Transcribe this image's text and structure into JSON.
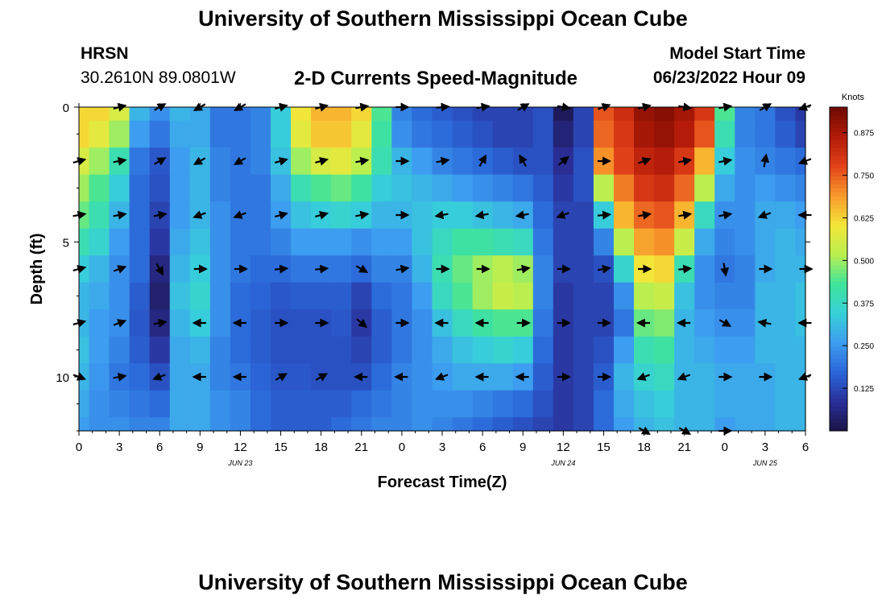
{
  "page": {
    "title": "University of Southern Mississippi Ocean Cube",
    "station": "HRSN",
    "coords": "30.2610N  89.0801W",
    "model_label": "Model Start Time",
    "model_time": "06/23/2022 Hour 09",
    "bottom_title": "University of Southern Mississippi Ocean Cube"
  },
  "chart_data": {
    "type": "heatmap",
    "title": "2-D Currents Speed-Magnitude",
    "xlabel": "Forecast Time(Z)",
    "ylabel": "Depth (ft)",
    "x_range": [
      0,
      54
    ],
    "x_ticks": [
      0,
      3,
      6,
      9,
      12,
      15,
      18,
      21,
      24,
      27,
      30,
      33,
      36,
      39,
      42,
      45,
      48,
      51,
      54
    ],
    "x_tick_labels": [
      "0",
      "3",
      "6",
      "9",
      "12",
      "15",
      "18",
      "21",
      "0",
      "3",
      "6",
      "9",
      "12",
      "15",
      "18",
      "21",
      "0",
      "3",
      "6"
    ],
    "date_labels": [
      {
        "label": "JUN 23",
        "x": 12
      },
      {
        "label": "JUN 24",
        "x": 36
      },
      {
        "label": "JUN 25",
        "x": 51
      }
    ],
    "depth_range": [
      0,
      12
    ],
    "depth_ticks": [
      0,
      5,
      10
    ],
    "depth_tick_labels": [
      "0",
      "5",
      "10"
    ],
    "colorbar": {
      "unit": "Knots",
      "range": [
        0,
        0.95
      ],
      "ticks": [
        0.125,
        0.25,
        0.375,
        0.5,
        0.625,
        0.75,
        0.875
      ],
      "tick_labels": [
        "0.125",
        "0.250",
        "0.375",
        "0.500",
        "0.625",
        "0.750",
        "0.875"
      ],
      "colors": [
        "#1a1446",
        "#2a2f9a",
        "#2a66d8",
        "#3d9cf0",
        "#37d0d8",
        "#3fe49a",
        "#b9ef50",
        "#f4e638",
        "#f89a2c",
        "#e3421a",
        "#b21a08",
        "#6e0a02"
      ]
    },
    "grid_times": [
      0,
      1.5,
      3,
      4.5,
      6,
      7.5,
      9,
      10.5,
      12,
      13.5,
      15,
      16.5,
      18,
      19.5,
      21,
      22.5,
      24,
      25.5,
      27,
      28.5,
      30,
      31.5,
      33,
      34.5,
      36,
      37.5,
      39,
      40.5,
      42,
      43.5,
      45,
      46.5,
      48,
      49.5,
      51,
      52.5,
      54
    ],
    "grid_depths": [
      0,
      1,
      2,
      3,
      4,
      5,
      6,
      7,
      8,
      9,
      10,
      11,
      12
    ],
    "speed_profiles": [
      {
        "t": 0,
        "speeds": [
          0.62,
          0.62,
          0.56,
          0.5,
          0.46,
          0.4,
          0.34,
          0.3,
          0.3,
          0.32,
          0.3,
          0.28,
          0.26
        ]
      },
      {
        "t": 1.5,
        "speeds": [
          0.62,
          0.58,
          0.5,
          0.44,
          0.4,
          0.36,
          0.3,
          0.28,
          0.26,
          0.26,
          0.25,
          0.24,
          0.24
        ]
      },
      {
        "t": 3,
        "speeds": [
          0.56,
          0.5,
          0.4,
          0.34,
          0.3,
          0.26,
          0.24,
          0.24,
          0.24,
          0.22,
          0.2,
          0.22,
          0.24
        ]
      },
      {
        "t": 4.5,
        "speeds": [
          0.3,
          0.26,
          0.2,
          0.18,
          0.18,
          0.18,
          0.18,
          0.16,
          0.15,
          0.16,
          0.18,
          0.2,
          0.22
        ]
      },
      {
        "t": 6,
        "speeds": [
          0.24,
          0.2,
          0.15,
          0.14,
          0.12,
          0.1,
          0.06,
          0.04,
          0.06,
          0.1,
          0.14,
          0.18,
          0.22
        ]
      },
      {
        "t": 7.5,
        "speeds": [
          0.3,
          0.28,
          0.26,
          0.26,
          0.26,
          0.28,
          0.3,
          0.32,
          0.3,
          0.28,
          0.28,
          0.28,
          0.28
        ]
      },
      {
        "t": 9,
        "speeds": [
          0.28,
          0.28,
          0.3,
          0.3,
          0.3,
          0.32,
          0.34,
          0.36,
          0.34,
          0.3,
          0.28,
          0.28,
          0.28
        ]
      },
      {
        "t": 10.5,
        "speeds": [
          0.2,
          0.2,
          0.22,
          0.22,
          0.24,
          0.24,
          0.24,
          0.24,
          0.24,
          0.22,
          0.22,
          0.24,
          0.24
        ]
      },
      {
        "t": 12,
        "speeds": [
          0.2,
          0.2,
          0.2,
          0.2,
          0.2,
          0.2,
          0.2,
          0.18,
          0.18,
          0.18,
          0.2,
          0.22,
          0.22
        ]
      },
      {
        "t": 13.5,
        "speeds": [
          0.22,
          0.22,
          0.22,
          0.2,
          0.2,
          0.2,
          0.18,
          0.17,
          0.16,
          0.16,
          0.17,
          0.18,
          0.18
        ]
      },
      {
        "t": 15,
        "speeds": [
          0.34,
          0.34,
          0.32,
          0.28,
          0.26,
          0.22,
          0.18,
          0.15,
          0.14,
          0.14,
          0.15,
          0.16,
          0.16
        ]
      },
      {
        "t": 16.5,
        "speeds": [
          0.6,
          0.58,
          0.5,
          0.4,
          0.32,
          0.26,
          0.2,
          0.16,
          0.14,
          0.14,
          0.15,
          0.16,
          0.16
        ]
      },
      {
        "t": 18,
        "speeds": [
          0.66,
          0.64,
          0.56,
          0.44,
          0.34,
          0.26,
          0.2,
          0.16,
          0.14,
          0.14,
          0.14,
          0.16,
          0.16
        ]
      },
      {
        "t": 19.5,
        "speeds": [
          0.66,
          0.64,
          0.58,
          0.46,
          0.36,
          0.26,
          0.2,
          0.16,
          0.15,
          0.14,
          0.14,
          0.16,
          0.18
        ]
      },
      {
        "t": 21,
        "speeds": [
          0.62,
          0.58,
          0.52,
          0.42,
          0.34,
          0.24,
          0.18,
          0.12,
          0.1,
          0.12,
          0.14,
          0.18,
          0.2
        ]
      },
      {
        "t": 22.5,
        "speeds": [
          0.44,
          0.42,
          0.4,
          0.34,
          0.3,
          0.26,
          0.22,
          0.18,
          0.16,
          0.16,
          0.18,
          0.2,
          0.22
        ]
      },
      {
        "t": 24,
        "speeds": [
          0.22,
          0.24,
          0.3,
          0.32,
          0.3,
          0.26,
          0.22,
          0.2,
          0.2,
          0.2,
          0.22,
          0.22,
          0.22
        ]
      },
      {
        "t": 25.5,
        "speeds": [
          0.18,
          0.2,
          0.26,
          0.3,
          0.32,
          0.32,
          0.3,
          0.26,
          0.24,
          0.24,
          0.24,
          0.24,
          0.24
        ]
      },
      {
        "t": 27,
        "speeds": [
          0.16,
          0.18,
          0.22,
          0.28,
          0.34,
          0.38,
          0.4,
          0.38,
          0.32,
          0.28,
          0.26,
          0.24,
          0.22
        ]
      },
      {
        "t": 28.5,
        "speeds": [
          0.14,
          0.16,
          0.2,
          0.26,
          0.34,
          0.42,
          0.46,
          0.44,
          0.38,
          0.32,
          0.28,
          0.24,
          0.2
        ]
      },
      {
        "t": 30,
        "speeds": [
          0.12,
          0.14,
          0.18,
          0.24,
          0.32,
          0.42,
          0.5,
          0.5,
          0.42,
          0.34,
          0.28,
          0.22,
          0.18
        ]
      },
      {
        "t": 31.5,
        "speeds": [
          0.12,
          0.12,
          0.16,
          0.22,
          0.3,
          0.4,
          0.52,
          0.54,
          0.44,
          0.36,
          0.28,
          0.2,
          0.16
        ]
      },
      {
        "t": 33,
        "speeds": [
          0.12,
          0.12,
          0.14,
          0.2,
          0.28,
          0.38,
          0.5,
          0.52,
          0.44,
          0.34,
          0.26,
          0.18,
          0.14
        ]
      },
      {
        "t": 34.5,
        "speeds": [
          0.14,
          0.14,
          0.14,
          0.16,
          0.18,
          0.2,
          0.22,
          0.22,
          0.2,
          0.18,
          0.16,
          0.14,
          0.12
        ]
      },
      {
        "t": 36,
        "speeds": [
          0.02,
          0.05,
          0.08,
          0.1,
          0.12,
          0.12,
          0.12,
          0.1,
          0.1,
          0.1,
          0.1,
          0.1,
          0.1
        ]
      },
      {
        "t": 37.5,
        "speeds": [
          0.12,
          0.12,
          0.14,
          0.14,
          0.12,
          0.12,
          0.12,
          0.12,
          0.12,
          0.12,
          0.12,
          0.12,
          0.12
        ]
      },
      {
        "t": 39,
        "speeds": [
          0.76,
          0.74,
          0.7,
          0.52,
          0.34,
          0.22,
          0.14,
          0.12,
          0.12,
          0.14,
          0.16,
          0.18,
          0.18
        ]
      },
      {
        "t": 40.5,
        "speeds": [
          0.82,
          0.8,
          0.78,
          0.72,
          0.66,
          0.52,
          0.36,
          0.24,
          0.2,
          0.26,
          0.3,
          0.28,
          0.26
        ]
      },
      {
        "t": 42,
        "speeds": [
          0.9,
          0.88,
          0.84,
          0.8,
          0.74,
          0.68,
          0.6,
          0.52,
          0.46,
          0.4,
          0.36,
          0.32,
          0.3
        ]
      },
      {
        "t": 43.5,
        "speeds": [
          0.92,
          0.9,
          0.86,
          0.82,
          0.76,
          0.7,
          0.62,
          0.54,
          0.48,
          0.42,
          0.38,
          0.34,
          0.32
        ]
      },
      {
        "t": 45,
        "speeds": [
          0.88,
          0.86,
          0.8,
          0.74,
          0.66,
          0.54,
          0.4,
          0.32,
          0.3,
          0.3,
          0.3,
          0.3,
          0.3
        ]
      },
      {
        "t": 46.5,
        "speeds": [
          0.8,
          0.76,
          0.66,
          0.52,
          0.38,
          0.28,
          0.24,
          0.24,
          0.26,
          0.28,
          0.3,
          0.3,
          0.3
        ]
      },
      {
        "t": 48,
        "speeds": [
          0.44,
          0.4,
          0.34,
          0.28,
          0.24,
          0.22,
          0.2,
          0.22,
          0.24,
          0.26,
          0.28,
          0.28,
          0.26
        ]
      },
      {
        "t": 49.5,
        "speeds": [
          0.22,
          0.22,
          0.24,
          0.24,
          0.24,
          0.24,
          0.22,
          0.22,
          0.24,
          0.26,
          0.28,
          0.28,
          0.28
        ]
      },
      {
        "t": 51,
        "speeds": [
          0.2,
          0.2,
          0.22,
          0.26,
          0.28,
          0.28,
          0.28,
          0.3,
          0.3,
          0.3,
          0.28,
          0.28,
          0.28
        ]
      },
      {
        "t": 52.5,
        "speeds": [
          0.14,
          0.16,
          0.2,
          0.24,
          0.28,
          0.3,
          0.3,
          0.3,
          0.3,
          0.3,
          0.3,
          0.3,
          0.3
        ]
      },
      {
        "t": 54,
        "speeds": [
          0.1,
          0.12,
          0.18,
          0.22,
          0.26,
          0.28,
          0.3,
          0.32,
          0.32,
          0.3,
          0.3,
          0.3,
          0.3
        ]
      }
    ],
    "vector_times": [
      0,
      3,
      6,
      9,
      12,
      15,
      18,
      21,
      24,
      27,
      30,
      33,
      36,
      39,
      42,
      45,
      48,
      51,
      54
    ],
    "vector_depths": [
      0,
      2,
      4,
      6,
      8,
      10,
      12
    ],
    "vector_directions_deg": [
      [
        null,
        15,
        30,
        210,
        210,
        15,
        15,
        10,
        0,
        5,
        10,
        30,
        350,
        20,
        15,
        350,
        10,
        30,
        200
      ],
      [
        15,
        10,
        30,
        210,
        210,
        15,
        15,
        10,
        0,
        10,
        60,
        120,
        40,
        0,
        20,
        10,
        10,
        80,
        200
      ],
      [
        10,
        10,
        10,
        200,
        200,
        15,
        15,
        10,
        0,
        190,
        190,
        190,
        200,
        5,
        10,
        10,
        10,
        200,
        180
      ],
      [
        15,
        20,
        300,
        0,
        0,
        5,
        5,
        330,
        10,
        0,
        0,
        10,
        0,
        10,
        0,
        5,
        280,
        0,
        0
      ],
      [
        15,
        20,
        10,
        180,
        180,
        0,
        0,
        320,
        0,
        180,
        180,
        0,
        0,
        0,
        180,
        180,
        330,
        170,
        180
      ],
      [
        340,
        10,
        200,
        180,
        180,
        30,
        30,
        180,
        180,
        200,
        180,
        180,
        0,
        0,
        200,
        200,
        0,
        0,
        200
      ],
      [
        null,
        null,
        null,
        null,
        null,
        null,
        null,
        null,
        null,
        null,
        null,
        null,
        null,
        null,
        330,
        330,
        0,
        null,
        null
      ]
    ]
  }
}
